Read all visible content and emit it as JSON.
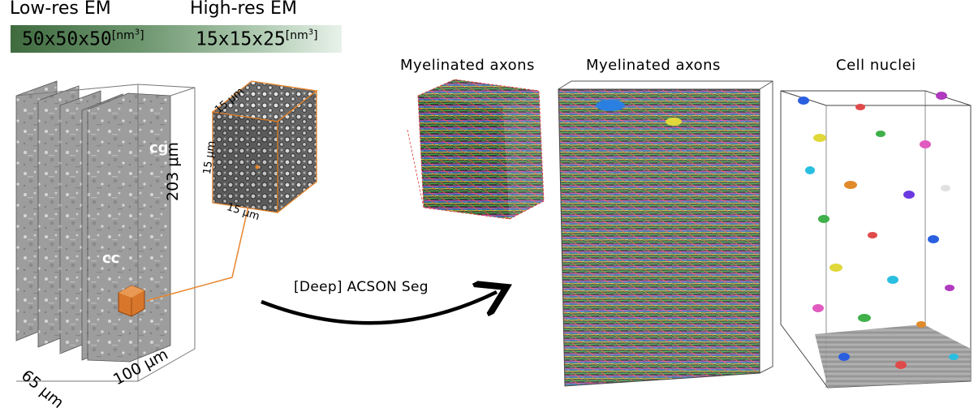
{
  "resolution": {
    "low_label": "Low-res EM",
    "high_label": "High-res EM",
    "low_value": "50x50x50",
    "high_value": "15x15x25",
    "unit_low": "[nm",
    "unit_high": "[nm",
    "unit_exp": "3",
    "unit_close": "]",
    "gradient_start": "#3f6b3f",
    "gradient_end": "#e8f2ea"
  },
  "volume": {
    "label_cg": "cg",
    "label_cc": "cc",
    "height_dim": "203 μm",
    "depth_dim": "65 μm",
    "width_dim": "100 μm"
  },
  "subvolume": {
    "dim_top": "15 μm",
    "dim_side": "15 μm",
    "dim_bottom": "15 μm",
    "highlight_color": "#d8772b"
  },
  "pipeline": {
    "arrow_label": "[Deep] ACSON Seg"
  },
  "panels": {
    "small_axons_title": "Myelinated axons",
    "large_axons_title": "Myelinated axons",
    "nuclei_title": "Cell nuclei"
  }
}
